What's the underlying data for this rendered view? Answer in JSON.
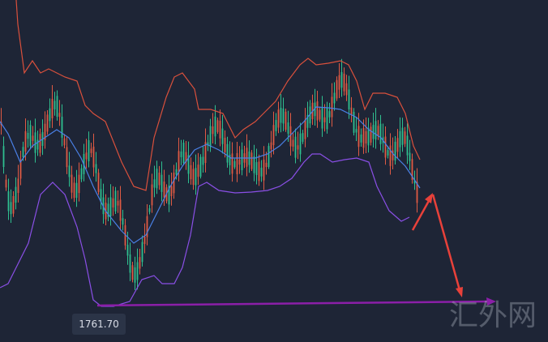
{
  "price_label": "1761.70",
  "watermark": "汇外网"
}
